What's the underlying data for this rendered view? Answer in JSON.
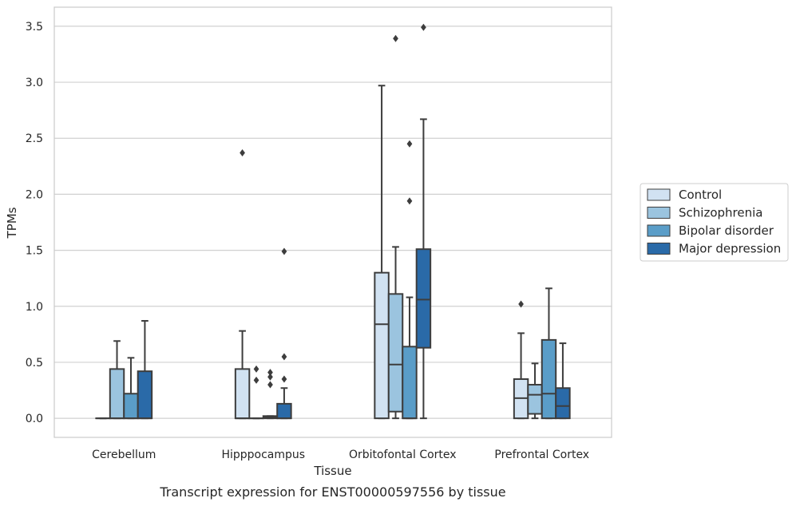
{
  "caption": "Transcript expression for ENST00000597556 by tissue",
  "chart_data": {
    "type": "box",
    "xlabel": "Tissue",
    "ylabel": "TPMs",
    "ylim": [
      -0.17,
      3.67
    ],
    "yticks": [
      "0.0",
      "0.5",
      "1.0",
      "1.5",
      "2.0",
      "2.5",
      "3.0",
      "3.5"
    ],
    "grid": "horizontal",
    "legend_position": "right",
    "categories": [
      "Cerebellum",
      "Hipppocampus",
      "Orbitofontal Cortex",
      "Prefrontal Cortex"
    ],
    "series": [
      {
        "name": "Control",
        "color": "#d1e2f2",
        "boxes": [
          {
            "q1": 0,
            "median": 0,
            "q3": 0,
            "whisker_low": 0,
            "whisker_high": 0,
            "outliers": []
          },
          {
            "q1": 0,
            "median": 0,
            "q3": 0.44,
            "whisker_low": 0,
            "whisker_high": 0.78,
            "outliers": [
              2.37
            ]
          },
          {
            "q1": 0,
            "median": 0.84,
            "q3": 1.3,
            "whisker_low": 0,
            "whisker_high": 2.97,
            "outliers": []
          },
          {
            "q1": 0,
            "median": 0.18,
            "q3": 0.35,
            "whisker_low": 0,
            "whisker_high": 0.76,
            "outliers": [
              1.02
            ]
          }
        ]
      },
      {
        "name": "Schizophrenia",
        "color": "#9bc4df",
        "boxes": [
          {
            "q1": 0,
            "median": 0,
            "q3": 0.44,
            "whisker_low": 0,
            "whisker_high": 0.69,
            "outliers": []
          },
          {
            "q1": 0,
            "median": 0,
            "q3": 0,
            "whisker_low": 0,
            "whisker_high": 0,
            "outliers": [
              0.44,
              0.34
            ]
          },
          {
            "q1": 0.06,
            "median": 0.48,
            "q3": 1.11,
            "whisker_low": 0,
            "whisker_high": 1.53,
            "outliers": [
              3.39
            ]
          },
          {
            "q1": 0.04,
            "median": 0.21,
            "q3": 0.3,
            "whisker_low": 0,
            "whisker_high": 0.49,
            "outliers": []
          }
        ]
      },
      {
        "name": "Bipolar disorder",
        "color": "#5a9dc8",
        "boxes": [
          {
            "q1": 0,
            "median": 0,
            "q3": 0.22,
            "whisker_low": 0,
            "whisker_high": 0.54,
            "outliers": []
          },
          {
            "q1": 0,
            "median": 0.01,
            "q3": 0.02,
            "whisker_low": 0,
            "whisker_high": 0.02,
            "outliers": [
              0.41,
              0.37,
              0.3
            ]
          },
          {
            "q1": 0,
            "median": 0,
            "q3": 0.64,
            "whisker_low": 0,
            "whisker_high": 1.08,
            "outliers": [
              2.45,
              1.94
            ]
          },
          {
            "q1": 0,
            "median": 0.22,
            "q3": 0.7,
            "whisker_low": 0,
            "whisker_high": 1.16,
            "outliers": []
          }
        ]
      },
      {
        "name": "Major depression",
        "color": "#2a6aa8",
        "boxes": [
          {
            "q1": 0,
            "median": 0,
            "q3": 0.42,
            "whisker_low": 0,
            "whisker_high": 0.87,
            "outliers": []
          },
          {
            "q1": 0,
            "median": 0,
            "q3": 0.13,
            "whisker_low": 0,
            "whisker_high": 0.27,
            "outliers": [
              1.49,
              0.55,
              0.35
            ]
          },
          {
            "q1": 0.63,
            "median": 1.06,
            "q3": 1.51,
            "whisker_low": 0,
            "whisker_high": 2.67,
            "outliers": [
              3.49
            ]
          },
          {
            "q1": 0,
            "median": 0.11,
            "q3": 0.27,
            "whisker_low": 0,
            "whisker_high": 0.67,
            "outliers": []
          }
        ]
      }
    ]
  }
}
